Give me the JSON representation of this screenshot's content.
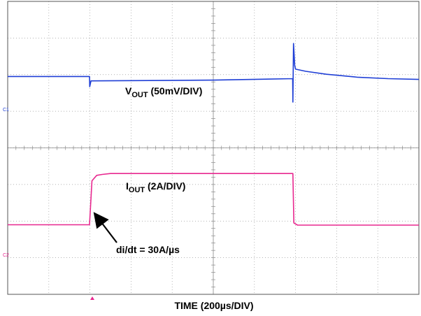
{
  "chart_data": {
    "type": "line",
    "title": "",
    "xlabel": "TIME (200µs/DIV)",
    "ylabel": "",
    "grid": true,
    "x_divisions": 10,
    "y_divisions": 8,
    "x_unit": "µs",
    "x_range": [
      0,
      2000
    ],
    "series": [
      {
        "channel_tag": "C1",
        "label": {
          "main": "V",
          "sub": "OUT",
          "rest": " (50mV/DIV)"
        },
        "color": "#1f3fd6",
        "y_unit": "mV",
        "y_div_scale": 50,
        "ground_level_div": 5.95,
        "x": [
          0,
          398,
          399,
          405,
          1000,
          1386,
          1387,
          1390,
          1396,
          1400,
          1450,
          1550,
          1700,
          1850,
          2000
        ],
        "y": [
          0,
          0,
          -14,
          -6,
          -5,
          -3,
          -35,
          45,
          15,
          10,
          7,
          3,
          -1,
          -3,
          -4
        ]
      },
      {
        "channel_tag": "C2",
        "label": {
          "main": "I",
          "sub": "OUT",
          "rest": " (2A/DIV)"
        },
        "color": "#e8288f",
        "y_unit": "A",
        "y_div_scale": 2,
        "ground_level_div": 1.9,
        "x": [
          0,
          398,
          410,
          433,
          460,
          500,
          1000,
          1387,
          1392,
          1410,
          2000
        ],
        "y": [
          0,
          0,
          2.4,
          2.7,
          2.75,
          2.8,
          2.8,
          2.8,
          0.1,
          -0.02,
          -0.02
        ]
      }
    ],
    "annotations": [
      {
        "text": "di/dt = 30A/µs"
      }
    ]
  }
}
